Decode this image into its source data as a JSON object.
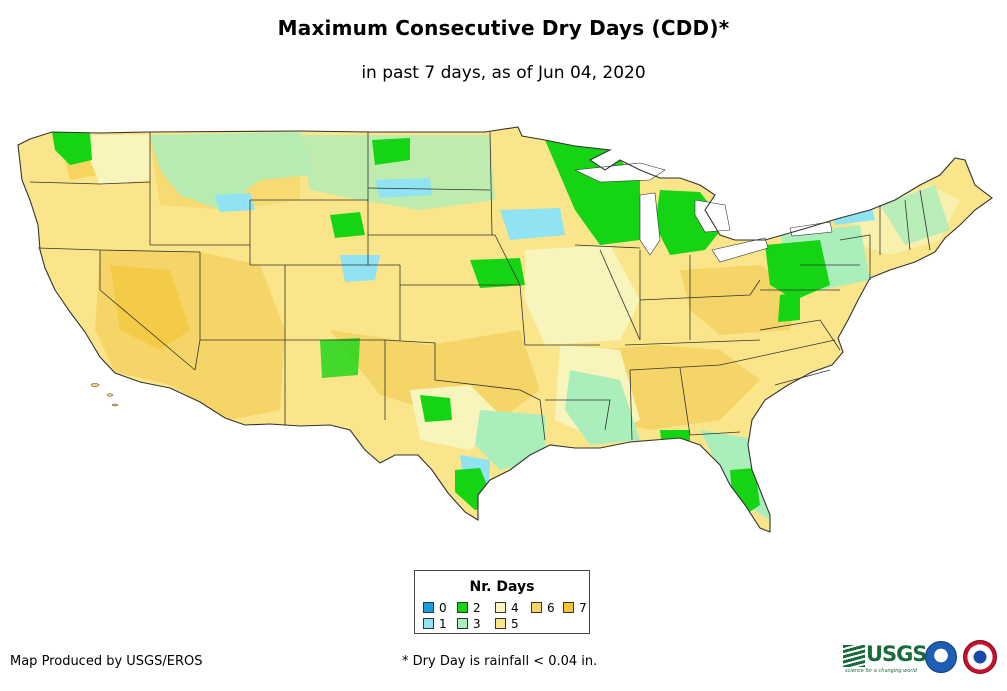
{
  "title": "Maximum Consecutive Dry Days (CDD)*",
  "subtitle": "in past 7 days, as of Jun 04, 2020",
  "legend": {
    "title": "Nr. Days",
    "items": [
      {
        "label": "0",
        "color": "#1a9ce0"
      },
      {
        "label": "1",
        "color": "#8fe3f2"
      },
      {
        "label": "2",
        "color": "#14d414"
      },
      {
        "label": "3",
        "color": "#aaeebb"
      },
      {
        "label": "4",
        "color": "#f7f5bc"
      },
      {
        "label": "5",
        "color": "#fae58a"
      },
      {
        "label": "6",
        "color": "#f6d568"
      },
      {
        "label": "7",
        "color": "#f4c432"
      }
    ]
  },
  "footer": {
    "left": "Map Produced by USGS/EROS",
    "note": "* Dry Day is rainfall < 0.04 in."
  },
  "logos": {
    "usgs_text": "USGS",
    "usgs_tagline": "science for a changing world"
  },
  "map": {
    "region": "contiguous-united-states",
    "base_color": "#fae58a",
    "border_color": "#333333"
  }
}
